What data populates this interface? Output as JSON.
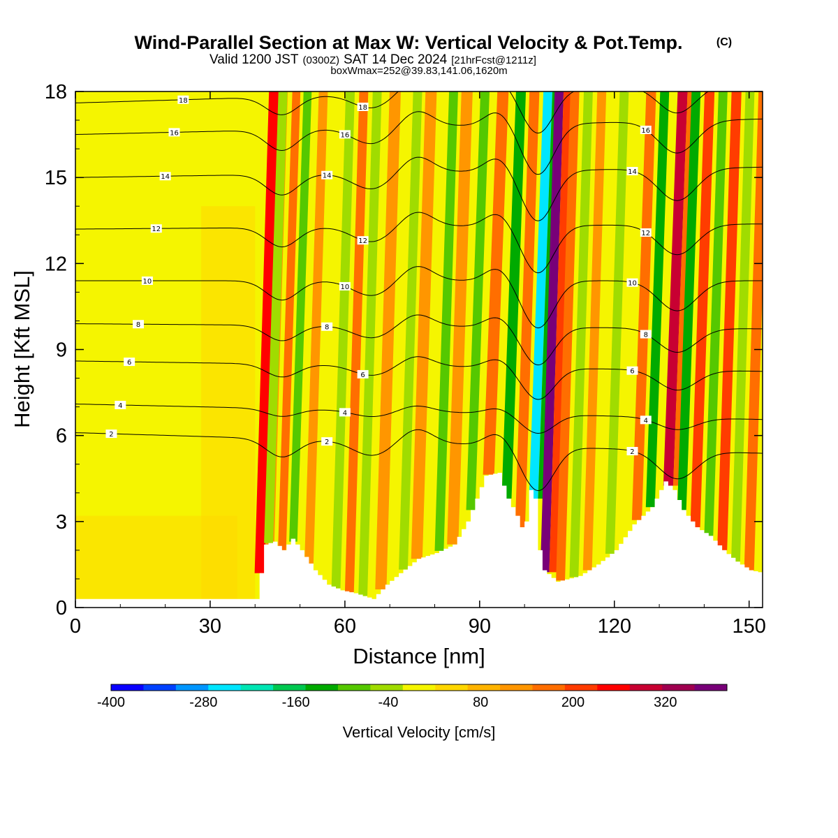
{
  "header": {
    "title": "Wind-Parallel Section at Max W: Vertical Velocity & Pot.Temp.",
    "title_mark": "(C)",
    "valid_prefix": "Valid 1200 JST",
    "valid_utc": "(0300Z)",
    "valid_date": "SAT 14 Dec 2024",
    "forecast": "[21hrFcst@1211z]",
    "boxinfo": "boxWmax=252@39.83,141.06,1620m"
  },
  "chart_data": {
    "type": "heatmap",
    "title": "Wind-Parallel Section at Max W: Vertical Velocity & Pot.Temp.",
    "xlabel": "Distance [nm]",
    "ylabel": "Height [Kft MSL]",
    "xlim": [
      0,
      153
    ],
    "ylim": [
      0,
      18
    ],
    "xticks": [
      0,
      30,
      60,
      90,
      120,
      150
    ],
    "yticks": [
      0,
      3,
      6,
      9,
      12,
      15,
      18
    ],
    "grid": false,
    "colorbar": {
      "label": "Vertical Velocity [cm/s]",
      "levels": [
        -400,
        -360,
        -320,
        -280,
        -240,
        -200,
        -160,
        -120,
        -80,
        -40,
        0,
        40,
        80,
        120,
        160,
        200,
        240,
        280,
        320,
        360
      ],
      "tick_labels": [
        "-400",
        "-280",
        "-160",
        "-40",
        "80",
        "200",
        "320"
      ],
      "tick_values": [
        -400,
        -280,
        -160,
        -40,
        80,
        200,
        320
      ],
      "colors": [
        "#0a00ff",
        "#0041ff",
        "#0096ff",
        "#00e6ff",
        "#00e6b4",
        "#00c850",
        "#00aa00",
        "#55c800",
        "#a0dc00",
        "#f5f500",
        "#ffd700",
        "#ffb400",
        "#ff9600",
        "#ff6e00",
        "#ff3c00",
        "#ff0000",
        "#c80032",
        "#a00050",
        "#780078"
      ]
    },
    "vertical_velocity_bands": [
      {
        "x": 41,
        "w": 2.2,
        "v": 200
      },
      {
        "x": 43,
        "w": 2.0,
        "v": -80
      },
      {
        "x": 46,
        "w": 1.8,
        "v": 120
      },
      {
        "x": 48.5,
        "w": 1.8,
        "v": -120
      },
      {
        "x": 52,
        "w": 2.0,
        "v": 100
      },
      {
        "x": 58,
        "w": 2.0,
        "v": -60
      },
      {
        "x": 61,
        "w": 2.0,
        "v": 120
      },
      {
        "x": 64,
        "w": 2.0,
        "v": -80
      },
      {
        "x": 68,
        "w": 2.5,
        "v": 80
      },
      {
        "x": 73,
        "w": 2.0,
        "v": -70
      },
      {
        "x": 76,
        "w": 2.5,
        "v": 100
      },
      {
        "x": 81,
        "w": 2.0,
        "v": -90
      },
      {
        "x": 84,
        "w": 2.5,
        "v": 110
      },
      {
        "x": 88,
        "w": 2.0,
        "v": -110
      },
      {
        "x": 92,
        "w": 2.5,
        "v": 120
      },
      {
        "x": 96,
        "w": 2.2,
        "v": -160
      },
      {
        "x": 99,
        "w": 2.2,
        "v": 120
      },
      {
        "x": 102,
        "w": 2.0,
        "v": -280
      },
      {
        "x": 104.5,
        "w": 2.0,
        "v": 320
      },
      {
        "x": 108,
        "w": 2.0,
        "v": 150
      },
      {
        "x": 111,
        "w": 2.0,
        "v": -60
      },
      {
        "x": 114,
        "w": 2.0,
        "v": 90
      },
      {
        "x": 119,
        "w": 2.0,
        "v": -60
      },
      {
        "x": 125,
        "w": 2.2,
        "v": 150
      },
      {
        "x": 128,
        "w": 2.0,
        "v": -140
      },
      {
        "x": 132,
        "w": 2.2,
        "v": 250
      },
      {
        "x": 135,
        "w": 2.0,
        "v": -160
      },
      {
        "x": 138,
        "w": 2.2,
        "v": 160
      },
      {
        "x": 141,
        "w": 2.0,
        "v": -120
      },
      {
        "x": 144,
        "w": 2.2,
        "v": 180
      },
      {
        "x": 147,
        "w": 2.0,
        "v": -80
      },
      {
        "x": 150,
        "w": 2.2,
        "v": 150
      }
    ],
    "terrain": [
      [
        0,
        0.3
      ],
      [
        40,
        0.3
      ],
      [
        41,
        1.2
      ],
      [
        42,
        2.2
      ],
      [
        44,
        2.3
      ],
      [
        46,
        2.0
      ],
      [
        48,
        2.4
      ],
      [
        50,
        2.0
      ],
      [
        53,
        1.3
      ],
      [
        56,
        0.8
      ],
      [
        59,
        0.6
      ],
      [
        62,
        0.5
      ],
      [
        66,
        0.3
      ],
      [
        69,
        0.8
      ],
      [
        72,
        1.2
      ],
      [
        76,
        1.7
      ],
      [
        80,
        1.9
      ],
      [
        84,
        2.2
      ],
      [
        87,
        3.0
      ],
      [
        89,
        3.8
      ],
      [
        91,
        4.6
      ],
      [
        94,
        4.7
      ],
      [
        96,
        3.8
      ],
      [
        98,
        3.2
      ],
      [
        99,
        2.8
      ],
      [
        100,
        3.0
      ],
      [
        101,
        4.1
      ],
      [
        102,
        3.8
      ],
      [
        103,
        2.0
      ],
      [
        104,
        1.3
      ],
      [
        107,
        0.9
      ],
      [
        112,
        1.1
      ],
      [
        116,
        1.5
      ],
      [
        120,
        2.0
      ],
      [
        124,
        2.9
      ],
      [
        128,
        3.5
      ],
      [
        131,
        4.4
      ],
      [
        133,
        4.1
      ],
      [
        135,
        3.4
      ],
      [
        138,
        2.8
      ],
      [
        141,
        2.5
      ],
      [
        144,
        2.0
      ],
      [
        147,
        1.6
      ],
      [
        150,
        1.3
      ],
      [
        153,
        1.2
      ]
    ],
    "potential_temperature_contours": [
      {
        "label": "2",
        "base": 6.1,
        "dip": 1.4
      },
      {
        "label": "4",
        "base": 7.1,
        "dip": 0.6
      },
      {
        "label": "6",
        "base": 8.6,
        "dip": 1.0
      },
      {
        "label": "8",
        "base": 9.9,
        "dip": 1.2
      },
      {
        "label": "10",
        "base": 11.4,
        "dip": 1.5
      },
      {
        "label": "12",
        "base": 13.2,
        "dip": 1.5
      },
      {
        "label": "14",
        "base": 15.0,
        "dip": 1.6
      },
      {
        "label": "16",
        "base": 16.5,
        "dip": 1.6
      },
      {
        "label": "18",
        "base": 17.6,
        "dip": 1.4
      }
    ]
  }
}
